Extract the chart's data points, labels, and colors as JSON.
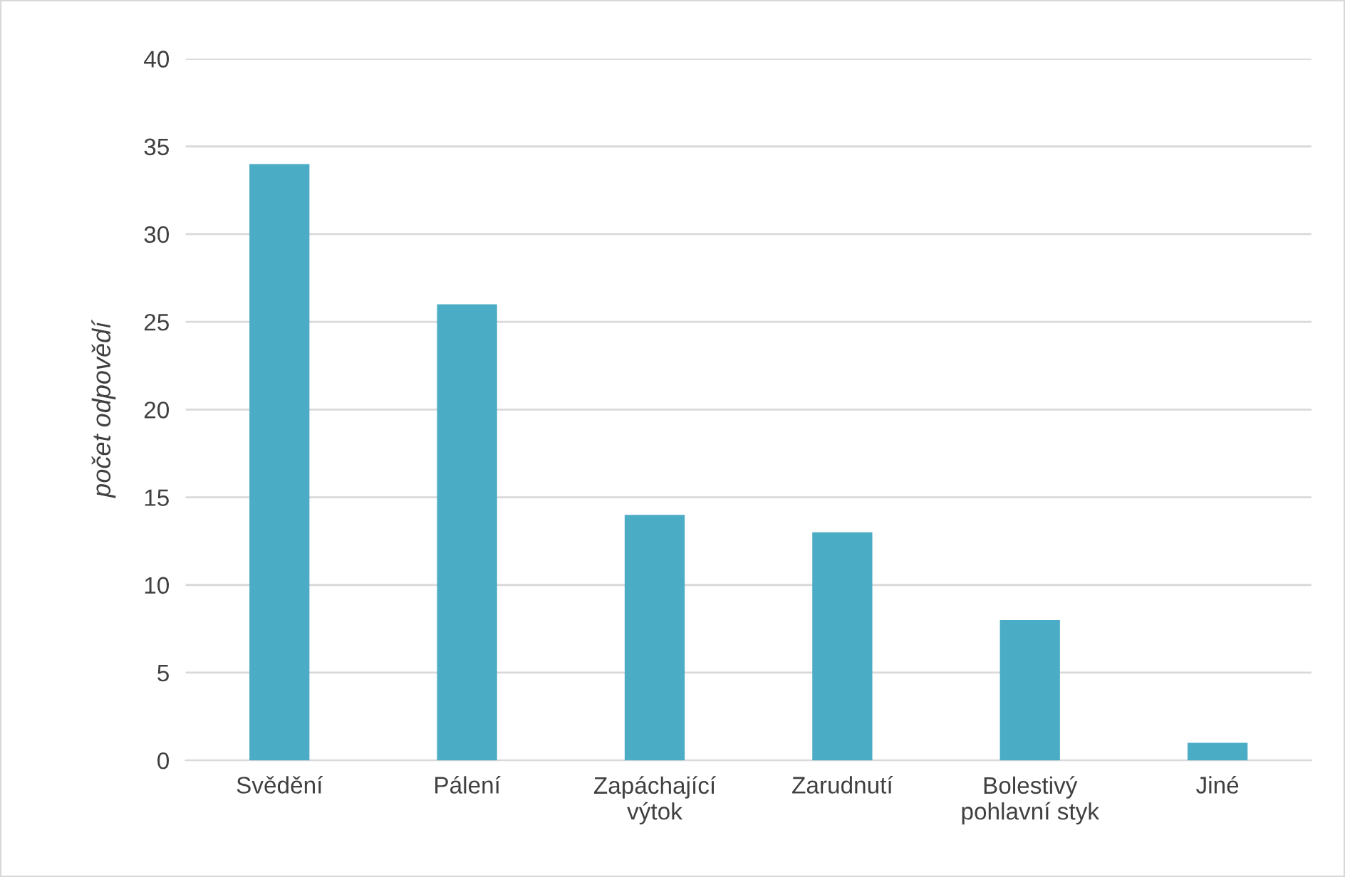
{
  "chart_data": {
    "type": "bar",
    "ylabel": "počet odpovědí",
    "categories": [
      "Svědění",
      "Pálení",
      "Zapáchající\nvýtok",
      "Zarudnutí",
      "Bolestivý\npohlavní styk",
      "Jiné"
    ],
    "series": [
      {
        "color": "#4bacc6",
        "values": [
          34,
          26,
          14,
          13,
          8,
          1
        ]
      }
    ],
    "ylim": [
      0,
      40
    ],
    "yticks": [
      0,
      5,
      10,
      15,
      20,
      25,
      30,
      35,
      40
    ],
    "grid": "y",
    "legend": false
  }
}
